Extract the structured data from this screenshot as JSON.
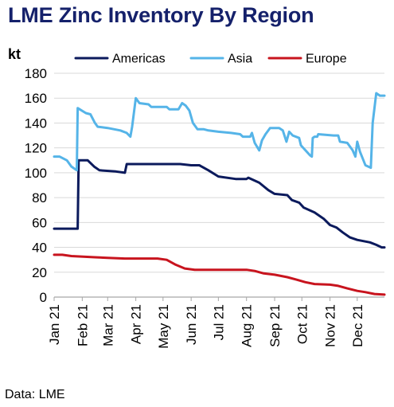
{
  "title": "LME Zinc Inventory By Region",
  "source": "Data: LME",
  "chart_data": {
    "type": "line",
    "title": "LME Zinc Inventory By Region",
    "ylabel": "kt",
    "xlabel": "",
    "ylim": [
      0,
      180
    ],
    "yticks": [
      0,
      20,
      40,
      60,
      80,
      100,
      120,
      140,
      160,
      180
    ],
    "xlim": [
      "2021-01-01",
      "2021-12-31"
    ],
    "xticks": [
      {
        "date": "2021-01-01",
        "label": "Jan 21"
      },
      {
        "date": "2021-02-01",
        "label": "Feb 21"
      },
      {
        "date": "2021-03-01",
        "label": "Mar 21"
      },
      {
        "date": "2021-04-01",
        "label": "Apr 21"
      },
      {
        "date": "2021-05-01",
        "label": "May 21"
      },
      {
        "date": "2021-06-01",
        "label": "Jun 21"
      },
      {
        "date": "2021-07-01",
        "label": "Jul 21"
      },
      {
        "date": "2021-08-01",
        "label": "Aug 21"
      },
      {
        "date": "2021-09-01",
        "label": "Sep 21"
      },
      {
        "date": "2021-10-01",
        "label": "Oct 21"
      },
      {
        "date": "2021-11-01",
        "label": "Nov 21"
      },
      {
        "date": "2021-12-01",
        "label": "Dec 21"
      }
    ],
    "grid": true,
    "legend_position": "top",
    "series": [
      {
        "name": "Americas",
        "color": "#0b1a5c",
        "points": [
          [
            "2021-01-01",
            55
          ],
          [
            "2021-01-27",
            55
          ],
          [
            "2021-01-28",
            110
          ],
          [
            "2021-02-07",
            110
          ],
          [
            "2021-02-14",
            105
          ],
          [
            "2021-02-20",
            102
          ],
          [
            "2021-03-10",
            101
          ],
          [
            "2021-03-20",
            100
          ],
          [
            "2021-03-22",
            107
          ],
          [
            "2021-05-20",
            107
          ],
          [
            "2021-06-01",
            106
          ],
          [
            "2021-06-10",
            106
          ],
          [
            "2021-06-20",
            102
          ],
          [
            "2021-07-01",
            97
          ],
          [
            "2021-07-20",
            95
          ],
          [
            "2021-08-01",
            95
          ],
          [
            "2021-08-03",
            96
          ],
          [
            "2021-08-15",
            92
          ],
          [
            "2021-08-25",
            86
          ],
          [
            "2021-09-01",
            83
          ],
          [
            "2021-09-15",
            82
          ],
          [
            "2021-09-20",
            78
          ],
          [
            "2021-09-28",
            76
          ],
          [
            "2021-10-03",
            72
          ],
          [
            "2021-10-15",
            68
          ],
          [
            "2021-10-25",
            63
          ],
          [
            "2021-11-01",
            58
          ],
          [
            "2021-11-08",
            56
          ],
          [
            "2021-11-15",
            52
          ],
          [
            "2021-11-23",
            48
          ],
          [
            "2021-12-01",
            46
          ],
          [
            "2021-12-15",
            44
          ],
          [
            "2021-12-22",
            42
          ],
          [
            "2021-12-28",
            40
          ],
          [
            "2021-12-31",
            40
          ]
        ]
      },
      {
        "name": "Asia",
        "color": "#55b4e8",
        "points": [
          [
            "2021-01-01",
            113
          ],
          [
            "2021-01-07",
            113
          ],
          [
            "2021-01-15",
            110
          ],
          [
            "2021-01-20",
            105
          ],
          [
            "2021-01-26",
            102
          ],
          [
            "2021-01-27",
            152
          ],
          [
            "2021-02-05",
            148
          ],
          [
            "2021-02-10",
            147
          ],
          [
            "2021-02-15",
            140
          ],
          [
            "2021-02-18",
            137
          ],
          [
            "2021-03-01",
            136
          ],
          [
            "2021-03-15",
            134
          ],
          [
            "2021-03-22",
            132
          ],
          [
            "2021-03-26",
            129
          ],
          [
            "2021-03-28",
            137
          ],
          [
            "2021-04-01",
            160
          ],
          [
            "2021-04-05",
            156
          ],
          [
            "2021-04-15",
            155
          ],
          [
            "2021-04-18",
            153
          ],
          [
            "2021-05-05",
            153
          ],
          [
            "2021-05-08",
            151
          ],
          [
            "2021-05-18",
            151
          ],
          [
            "2021-05-22",
            156
          ],
          [
            "2021-05-26",
            154
          ],
          [
            "2021-05-30",
            150
          ],
          [
            "2021-06-03",
            140
          ],
          [
            "2021-06-08",
            135
          ],
          [
            "2021-06-15",
            135
          ],
          [
            "2021-06-20",
            134
          ],
          [
            "2021-07-01",
            133
          ],
          [
            "2021-07-15",
            132
          ],
          [
            "2021-07-25",
            131
          ],
          [
            "2021-07-28",
            129
          ],
          [
            "2021-08-05",
            129
          ],
          [
            "2021-08-07",
            132
          ],
          [
            "2021-08-10",
            124
          ],
          [
            "2021-08-15",
            118
          ],
          [
            "2021-08-18",
            126
          ],
          [
            "2021-08-22",
            131
          ],
          [
            "2021-08-27",
            136
          ],
          [
            "2021-09-06",
            136
          ],
          [
            "2021-09-10",
            134
          ],
          [
            "2021-09-14",
            125
          ],
          [
            "2021-09-17",
            133
          ],
          [
            "2021-09-21",
            130
          ],
          [
            "2021-09-28",
            128
          ],
          [
            "2021-09-30",
            122
          ],
          [
            "2021-10-05",
            118
          ],
          [
            "2021-10-10",
            114
          ],
          [
            "2021-10-12",
            113
          ],
          [
            "2021-10-13",
            128
          ],
          [
            "2021-10-15",
            129
          ],
          [
            "2021-10-18",
            129
          ],
          [
            "2021-10-19",
            131
          ],
          [
            "2021-11-05",
            130
          ],
          [
            "2021-11-10",
            130
          ],
          [
            "2021-11-12",
            125
          ],
          [
            "2021-11-20",
            124
          ],
          [
            "2021-11-26",
            118
          ],
          [
            "2021-11-29",
            113
          ],
          [
            "2021-12-01",
            125
          ],
          [
            "2021-12-04",
            117
          ],
          [
            "2021-12-10",
            106
          ],
          [
            "2021-12-16",
            104
          ],
          [
            "2021-12-18",
            140
          ],
          [
            "2021-12-22",
            164
          ],
          [
            "2021-12-26",
            162
          ],
          [
            "2021-12-31",
            162
          ]
        ]
      },
      {
        "name": "Europe",
        "color": "#c8141e",
        "points": [
          [
            "2021-01-01",
            34
          ],
          [
            "2021-01-10",
            34
          ],
          [
            "2021-01-20",
            33
          ],
          [
            "2021-02-15",
            32
          ],
          [
            "2021-03-01",
            31.5
          ],
          [
            "2021-03-20",
            31
          ],
          [
            "2021-04-25",
            31
          ],
          [
            "2021-05-05",
            30
          ],
          [
            "2021-05-15",
            26
          ],
          [
            "2021-05-25",
            23
          ],
          [
            "2021-06-05",
            22
          ],
          [
            "2021-07-01",
            22
          ],
          [
            "2021-08-01",
            22
          ],
          [
            "2021-08-10",
            21
          ],
          [
            "2021-08-20",
            19
          ],
          [
            "2021-09-01",
            18
          ],
          [
            "2021-09-15",
            16
          ],
          [
            "2021-09-25",
            14
          ],
          [
            "2021-10-05",
            12
          ],
          [
            "2021-10-15",
            10.5
          ],
          [
            "2021-11-01",
            10
          ],
          [
            "2021-11-10",
            9
          ],
          [
            "2021-11-20",
            7
          ],
          [
            "2021-12-01",
            5
          ],
          [
            "2021-12-10",
            4
          ],
          [
            "2021-12-20",
            2.5
          ],
          [
            "2021-12-31",
            2
          ]
        ]
      }
    ]
  }
}
